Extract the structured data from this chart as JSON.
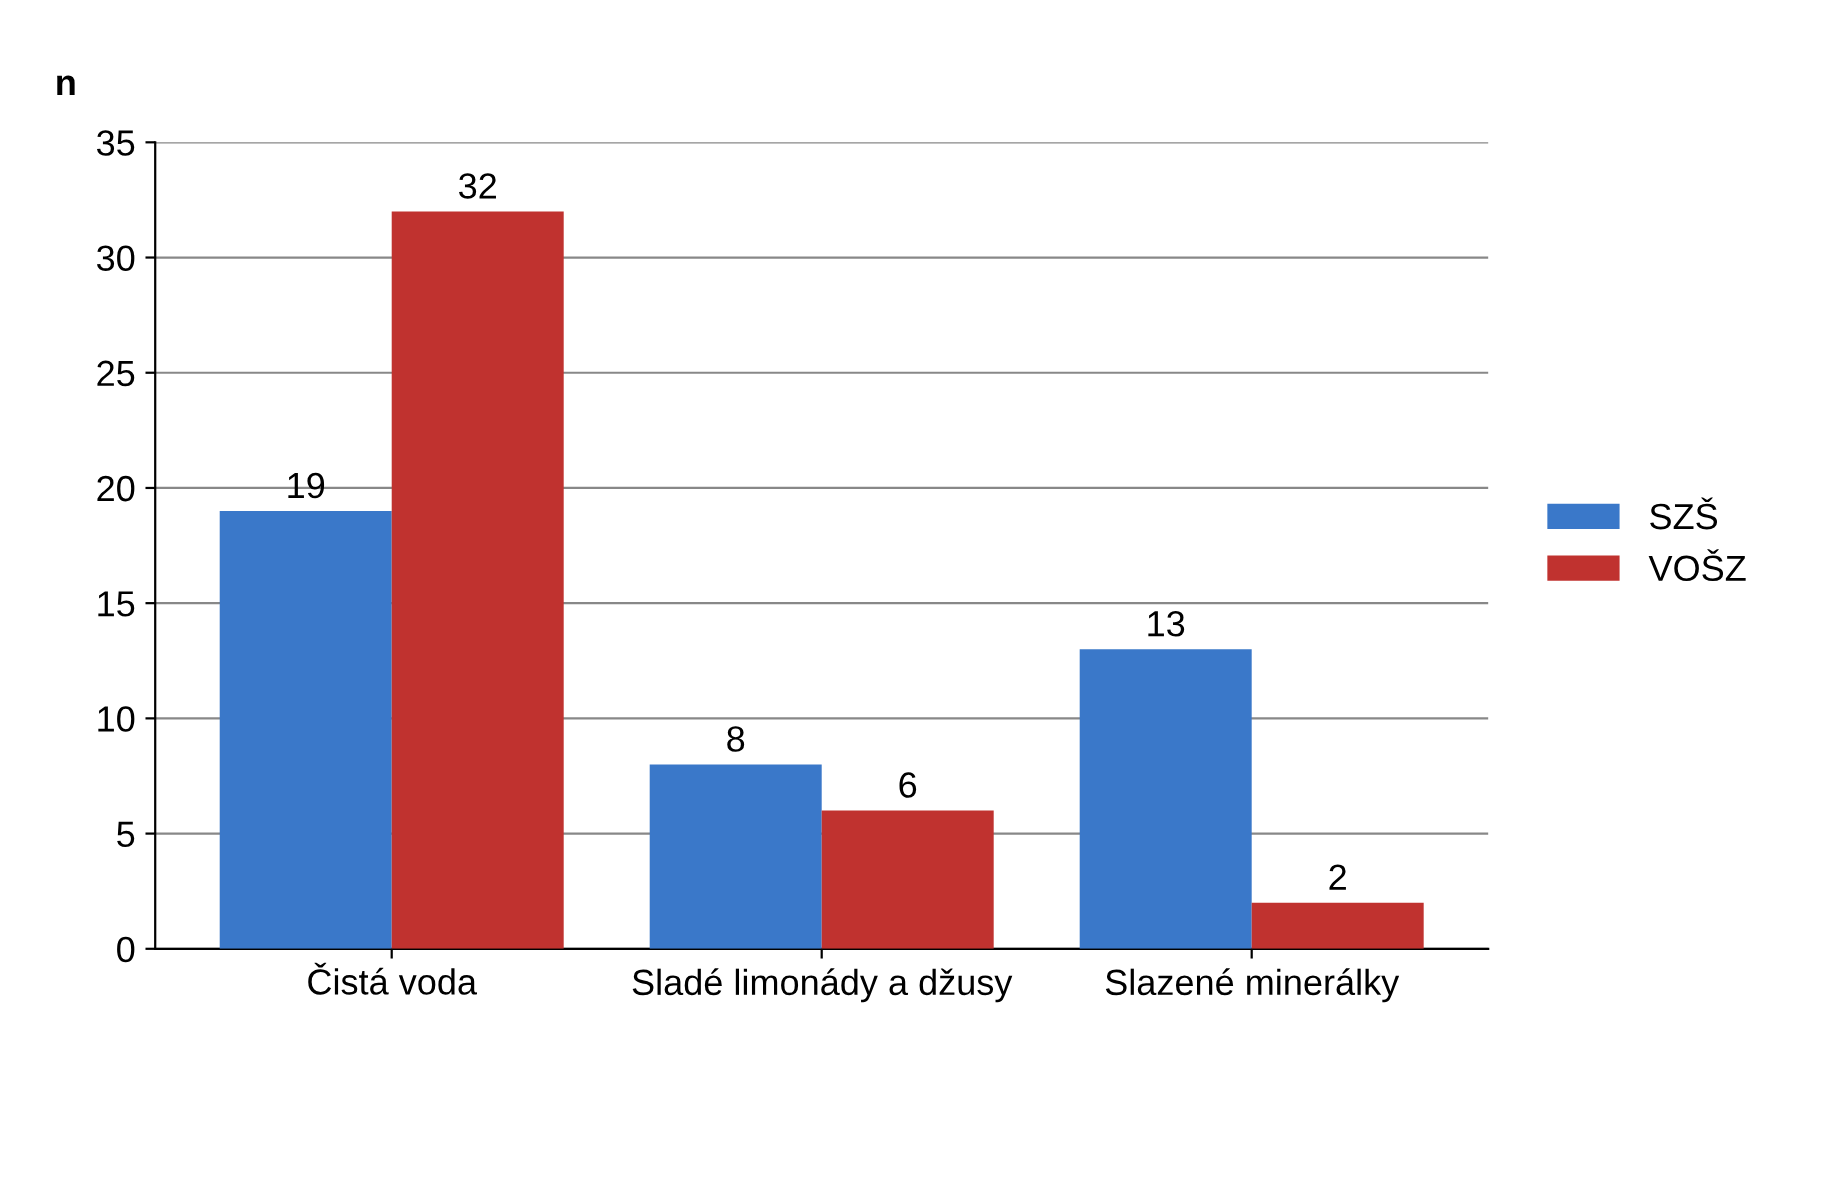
{
  "chart_data": {
    "type": "bar",
    "ylabel": "n",
    "categories": [
      "Čistá voda",
      "Sladé limonády a džusy",
      "Slazené minerálky"
    ],
    "series": [
      {
        "name": "SZŠ",
        "color": "#3a78c9",
        "values": [
          19,
          8,
          13
        ]
      },
      {
        "name": "VOŠZ",
        "color": "#c0322f",
        "values": [
          32,
          6,
          2
        ]
      }
    ],
    "ylim": [
      0,
      35
    ],
    "yticks": [
      0,
      5,
      10,
      15,
      20,
      25,
      30,
      35
    ],
    "grid": "y",
    "legend": "right",
    "data_labels": true
  }
}
